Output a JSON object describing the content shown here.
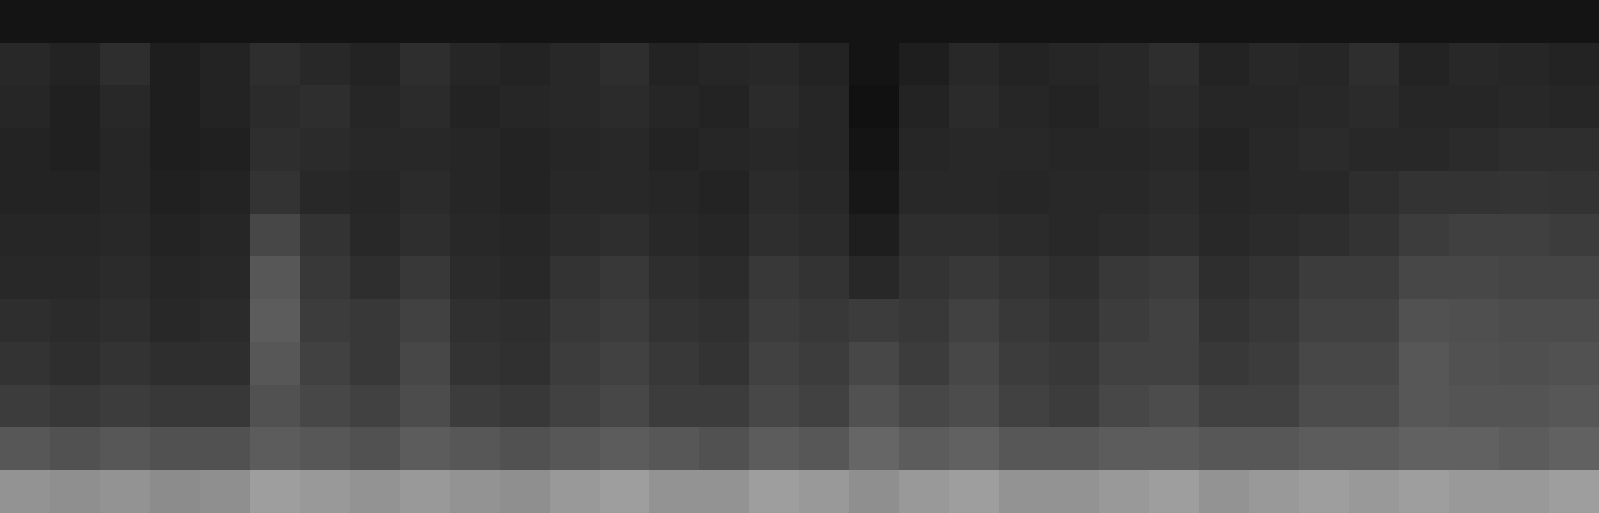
{
  "chart_data": {
    "type": "heatmap",
    "tick_labels": false,
    "color": "#ffffff",
    "zlim": [
      0,
      100
    ],
    "cells": [
      [
        8,
        8,
        8,
        8,
        8,
        8,
        8,
        8,
        8,
        8,
        8,
        8,
        8,
        8,
        8,
        8,
        8,
        8,
        8,
        8,
        8,
        8,
        8,
        8,
        8,
        8,
        8,
        8,
        8,
        8,
        8,
        8
      ],
      [
        16,
        14,
        18,
        12,
        14,
        18,
        16,
        14,
        18,
        15,
        14,
        16,
        18,
        14,
        15,
        16,
        14,
        8,
        12,
        16,
        14,
        15,
        16,
        18,
        14,
        16,
        15,
        18,
        14,
        16,
        15,
        14
      ],
      [
        15,
        13,
        16,
        12,
        14,
        17,
        18,
        15,
        17,
        14,
        15,
        16,
        17,
        15,
        14,
        17,
        15,
        7,
        14,
        17,
        15,
        14,
        16,
        17,
        15,
        15,
        16,
        17,
        15,
        15,
        16,
        15
      ],
      [
        14,
        13,
        15,
        12,
        13,
        18,
        17,
        16,
        16,
        15,
        14,
        15,
        16,
        14,
        15,
        16,
        15,
        8,
        15,
        16,
        16,
        15,
        15,
        16,
        14,
        16,
        17,
        16,
        16,
        17,
        18,
        18
      ],
      [
        14,
        14,
        15,
        13,
        14,
        20,
        16,
        15,
        17,
        15,
        14,
        16,
        16,
        15,
        14,
        17,
        16,
        9,
        16,
        16,
        15,
        16,
        16,
        17,
        15,
        16,
        16,
        18,
        20,
        20,
        21,
        20
      ],
      [
        15,
        15,
        16,
        14,
        15,
        28,
        20,
        16,
        18,
        16,
        15,
        17,
        18,
        16,
        15,
        18,
        17,
        12,
        18,
        18,
        17,
        16,
        17,
        18,
        16,
        17,
        18,
        20,
        24,
        25,
        25,
        24
      ],
      [
        16,
        16,
        17,
        15,
        16,
        34,
        22,
        18,
        22,
        17,
        16,
        20,
        22,
        18,
        17,
        22,
        20,
        16,
        20,
        22,
        20,
        18,
        22,
        24,
        18,
        20,
        24,
        24,
        28,
        28,
        27,
        27
      ],
      [
        18,
        17,
        18,
        16,
        17,
        36,
        24,
        22,
        26,
        19,
        18,
        22,
        24,
        20,
        19,
        24,
        22,
        24,
        22,
        26,
        22,
        20,
        24,
        26,
        20,
        22,
        26,
        26,
        32,
        31,
        30,
        30
      ],
      [
        20,
        18,
        20,
        18,
        18,
        34,
        26,
        22,
        28,
        20,
        19,
        24,
        26,
        22,
        20,
        26,
        24,
        28,
        24,
        28,
        24,
        22,
        26,
        26,
        22,
        24,
        28,
        28,
        34,
        32,
        31,
        32
      ],
      [
        24,
        22,
        24,
        22,
        22,
        32,
        28,
        26,
        30,
        24,
        22,
        26,
        28,
        24,
        24,
        28,
        26,
        32,
        28,
        30,
        26,
        24,
        28,
        30,
        26,
        26,
        30,
        30,
        34,
        33,
        33,
        34
      ],
      [
        34,
        32,
        34,
        32,
        32,
        36,
        34,
        32,
        36,
        34,
        32,
        34,
        36,
        34,
        32,
        36,
        34,
        40,
        36,
        38,
        34,
        34,
        36,
        36,
        34,
        34,
        36,
        36,
        38,
        38,
        36,
        38
      ],
      [
        58,
        56,
        58,
        55,
        56,
        62,
        60,
        58,
        60,
        58,
        56,
        60,
        62,
        58,
        58,
        62,
        60,
        56,
        60,
        62,
        58,
        58,
        60,
        62,
        58,
        60,
        62,
        60,
        62,
        60,
        60,
        62
      ]
    ]
  }
}
